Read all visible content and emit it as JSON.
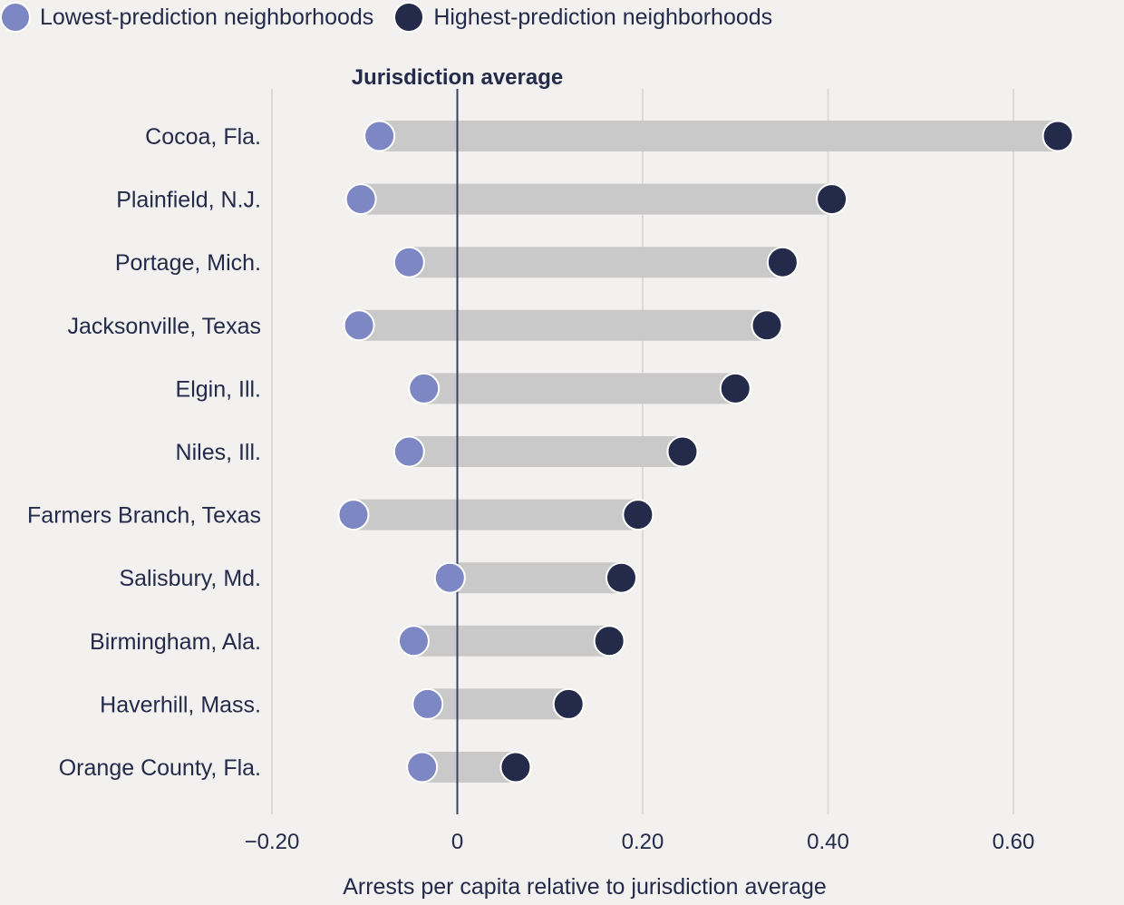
{
  "legend": {
    "low_label": "Lowest-prediction neighborhoods",
    "high_label": "Highest-prediction neighborhoods"
  },
  "colors": {
    "low": "#7c87c4",
    "high": "#232a4a",
    "bar": "#c9c9c9",
    "grid": "#dcdad7",
    "refline": "#3a4160",
    "text": "#232a4a",
    "background": "#f3f1ef"
  },
  "chart_data": {
    "type": "dumbbell",
    "reference_line": {
      "label": "Jurisdiction average",
      "value": 0
    },
    "xlabel": "Arrests per capita relative to jurisdiction average",
    "xlim": [
      -0.2,
      0.7
    ],
    "xticks": [
      {
        "value": -0.2,
        "label": "−0.20"
      },
      {
        "value": 0,
        "label": "0"
      },
      {
        "value": 0.2,
        "label": "0.20"
      },
      {
        "value": 0.4,
        "label": "0.40"
      },
      {
        "value": 0.6,
        "label": "0.60"
      }
    ],
    "grid": true,
    "categories": [
      "Cocoa, Fla.",
      "Plainfield, N.J.",
      "Portage, Mich.",
      "Jacksonville, Texas",
      "Elgin, Ill.",
      "Niles, Ill.",
      "Farmers Branch, Texas",
      "Salisbury, Md.",
      "Birmingham, Ala.",
      "Haverhill, Mass.",
      "Orange County, Fla."
    ],
    "series": [
      {
        "name": "Lowest-prediction neighborhoods",
        "values": [
          -0.084,
          -0.104,
          -0.052,
          -0.106,
          -0.036,
          -0.052,
          -0.112,
          -0.008,
          -0.047,
          -0.032,
          -0.038
        ]
      },
      {
        "name": "Highest-prediction neighborhoods",
        "values": [
          0.648,
          0.404,
          0.351,
          0.334,
          0.3,
          0.243,
          0.195,
          0.177,
          0.164,
          0.12,
          0.063
        ]
      }
    ]
  }
}
